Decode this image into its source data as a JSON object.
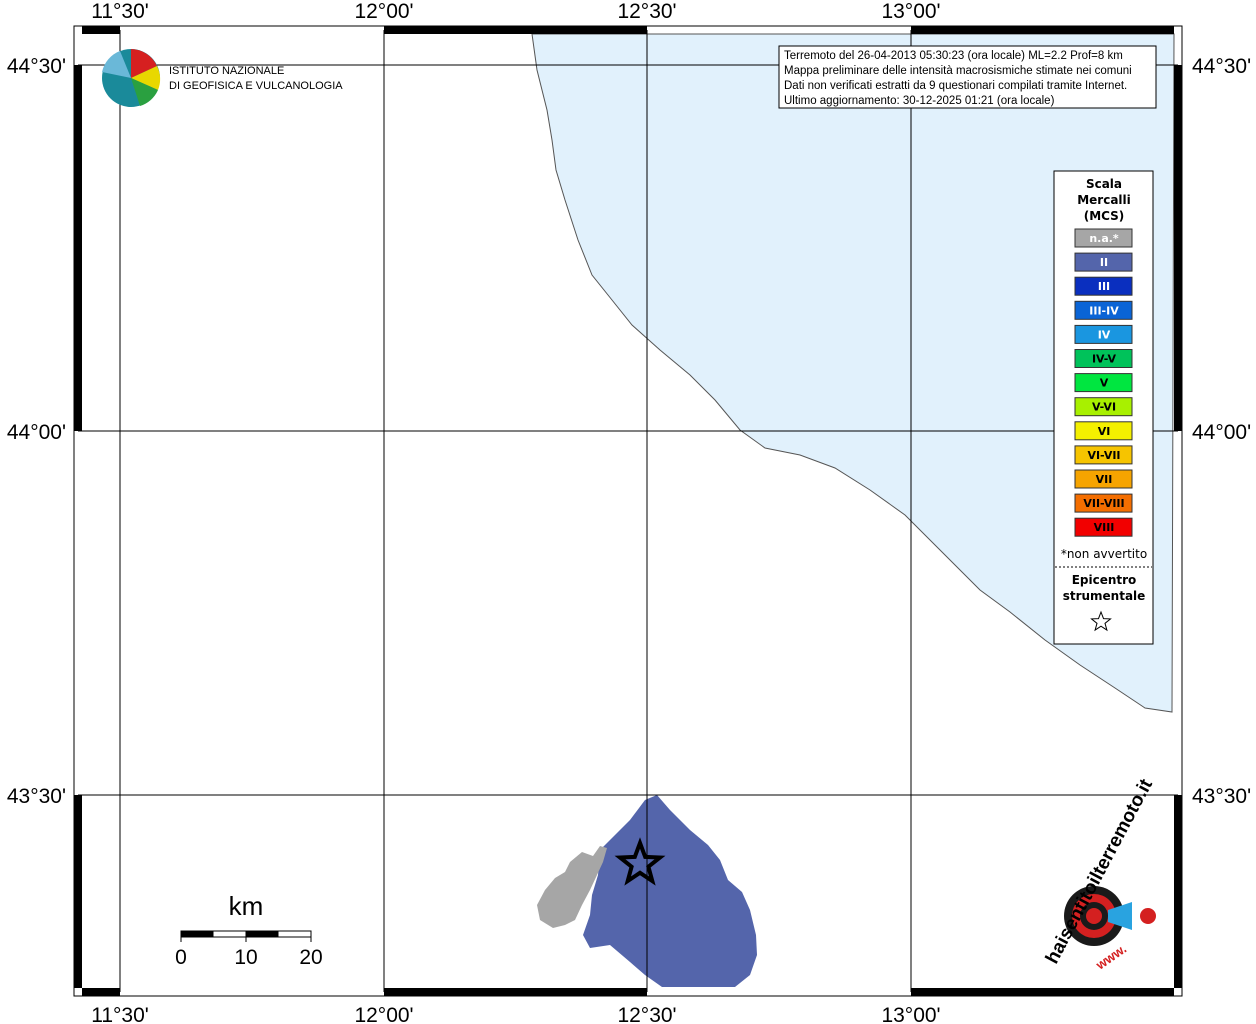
{
  "map": {
    "lon_labels": [
      "11°30'",
      "12°00'",
      "12°30'",
      "13°00'"
    ],
    "lat_labels": [
      "44°30'",
      "44°00'",
      "43°30'"
    ],
    "logo": {
      "line1": "ISTITUTO NAZIONALE",
      "line2": "DI GEOFISICA E VULCANOLOGIA"
    },
    "info": [
      "Terremoto del 26-04-2013 05:30:23 (ora locale) ML=2.2 Prof=8 km",
      "Mappa preliminare delle intensità macrosismiche stimate nei comuni",
      "Dati non verificati estratti da 9 questionari compilati tramite Internet.",
      "Ultimo aggiornamento: 30-12-2025 01:21 (ora locale)"
    ],
    "legend": {
      "title": [
        "Scala",
        "Mercalli",
        "(MCS)"
      ],
      "items": [
        {
          "label": "n.a.*",
          "color": "#a6a6a6"
        },
        {
          "label": "II",
          "color": "#5465ab"
        },
        {
          "label": "III",
          "color": "#0a2fbf"
        },
        {
          "label": "III-IV",
          "color": "#0a64d6"
        },
        {
          "label": "IV",
          "color": "#1a96e0"
        },
        {
          "label": "IV-V",
          "color": "#00c25a"
        },
        {
          "label": "V",
          "color": "#00e640"
        },
        {
          "label": "V-VI",
          "color": "#a8f000"
        },
        {
          "label": "VI",
          "color": "#f4f000"
        },
        {
          "label": "VI-VII",
          "color": "#f6c400"
        },
        {
          "label": "VII",
          "color": "#f6a400"
        },
        {
          "label": "VII-VIII",
          "color": "#f46e00"
        },
        {
          "label": "VIII",
          "color": "#f20000"
        }
      ],
      "note": "*non avvertito",
      "epicenter": [
        "Epicentro",
        "strumentale"
      ]
    },
    "scale_bar": {
      "unit": "km",
      "ticks": [
        0,
        10,
        20
      ]
    },
    "hst_logo": {
      "text": "haisentitoilterremoto.it",
      "prefix": "www."
    }
  }
}
